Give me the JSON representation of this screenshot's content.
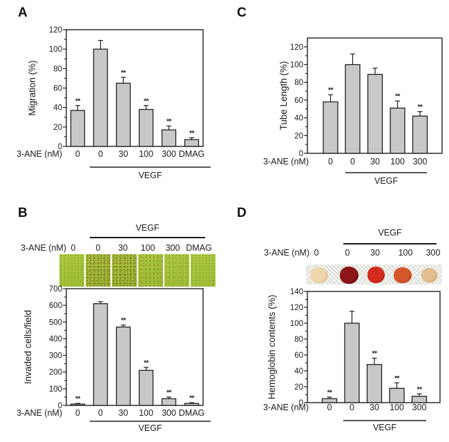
{
  "figure": {
    "background": "#ffffff",
    "bar_fill": "#c7c8ca",
    "bar_stroke": "#1f1f1f",
    "axis_color": "#1f1f1f",
    "text_color": "#1a1a1a"
  },
  "panels": {
    "A": {
      "label": "A"
    },
    "B": {
      "label": "B",
      "images_header": {
        "group_label": "VEGF",
        "prefix": "3-ANE (nM)",
        "doses": [
          "0",
          "0",
          "30",
          "100",
          "300",
          "DMAG"
        ],
        "images": [
          {
            "name": "invasion-photo-control",
            "speckle": "plain"
          },
          {
            "name": "invasion-photo-vegf-0",
            "speckle": "heavy"
          },
          {
            "name": "invasion-photo-vegf-30",
            "speckle": "heavy"
          },
          {
            "name": "invasion-photo-vegf-100",
            "speckle": "medium"
          },
          {
            "name": "invasion-photo-vegf-300",
            "speckle": "light"
          },
          {
            "name": "invasion-photo-vegf-dmag",
            "speckle": "plain"
          }
        ],
        "tile_base_color": "#a4c33c"
      }
    },
    "C": {
      "label": "C"
    },
    "D": {
      "label": "D",
      "images_header": {
        "group_label": "VEGF",
        "prefix": "3-ANE (nM)",
        "doses": [
          "0",
          "0",
          "30",
          "100",
          "300"
        ],
        "gauze_color": "#ecede8",
        "plugs": [
          {
            "name": "matrigel-plug-control",
            "color": "#eed7ae",
            "edge": "#ddb27c"
          },
          {
            "name": "matrigel-plug-vegf-0",
            "color": "#8c1517",
            "edge": "#5e0c10"
          },
          {
            "name": "matrigel-plug-vegf-30",
            "color": "#d32b1e",
            "edge": "#a81b12"
          },
          {
            "name": "matrigel-plug-vegf-100",
            "color": "#d4572b",
            "edge": "#b03a1a"
          },
          {
            "name": "matrigel-plug-vegf-300",
            "color": "#e2bd8f",
            "edge": "#cf9a5e"
          }
        ]
      }
    }
  },
  "chart_data": [
    {
      "panel": "A",
      "type": "bar",
      "title": "",
      "ylabel": "Migration (%)",
      "xlabel_prefix": "3-ANE (nM)",
      "categories": [
        "0",
        "0",
        "30",
        "100",
        "300",
        "DMAG"
      ],
      "values": [
        37,
        100,
        65,
        38,
        17,
        7
      ],
      "errors": [
        5,
        9,
        6,
        4,
        4,
        2
      ],
      "significance": [
        "**",
        "",
        "**",
        "**",
        "**",
        "**"
      ],
      "ylim": [
        0,
        120
      ],
      "ytick_step": 20,
      "ytick_max": 120,
      "yminor_step": 10,
      "grid": false,
      "group_label": "VEGF",
      "group_span": [
        1,
        5
      ]
    },
    {
      "panel": "B",
      "type": "bar",
      "title": "",
      "ylabel": "Invaded cells/field",
      "xlabel_prefix": "3-ANE (nM)",
      "categories": [
        "0",
        "0",
        "30",
        "100",
        "300",
        "DMAG"
      ],
      "values": [
        8,
        610,
        470,
        210,
        40,
        12
      ],
      "errors": [
        4,
        12,
        12,
        18,
        10,
        4
      ],
      "significance": [
        "**",
        "",
        "**",
        "**",
        "**",
        "**"
      ],
      "ylim": [
        0,
        700
      ],
      "ytick_step": 100,
      "ytick_max": 700,
      "yminor_step": 50,
      "grid": false,
      "group_label": "VEGF",
      "group_span": [
        1,
        5
      ]
    },
    {
      "panel": "C",
      "type": "bar",
      "title": "",
      "ylabel": "Tube Length (%)",
      "xlabel_prefix": "3-ANE (nM)",
      "categories": [
        "0",
        "0",
        "30",
        "100",
        "300"
      ],
      "values": [
        58,
        100,
        89,
        51,
        42
      ],
      "errors": [
        8,
        12,
        7,
        8,
        5
      ],
      "significance": [
        "**",
        "",
        "",
        "**",
        "**"
      ],
      "ylim": [
        0,
        130
      ],
      "ytick_step": 20,
      "ytick_max": 120,
      "yminor_step": 10,
      "grid": false,
      "group_label": "VEGF",
      "group_span": [
        1,
        4
      ]
    },
    {
      "panel": "D",
      "type": "bar",
      "title": "",
      "ylabel": "Hemoglobin contents (%)",
      "xlabel_prefix": "3-ANE (nM)",
      "categories": [
        "0",
        "0",
        "30",
        "100",
        "300"
      ],
      "values": [
        5,
        100,
        48,
        18,
        8
      ],
      "errors": [
        2,
        15,
        8,
        7,
        3
      ],
      "significance": [
        "**",
        "",
        "**",
        "**",
        "**"
      ],
      "ylim": [
        0,
        140
      ],
      "ytick_step": 20,
      "ytick_max": 140,
      "yminor_step": 10,
      "grid": false,
      "group_label": "VEGF",
      "group_span": [
        1,
        4
      ]
    }
  ]
}
